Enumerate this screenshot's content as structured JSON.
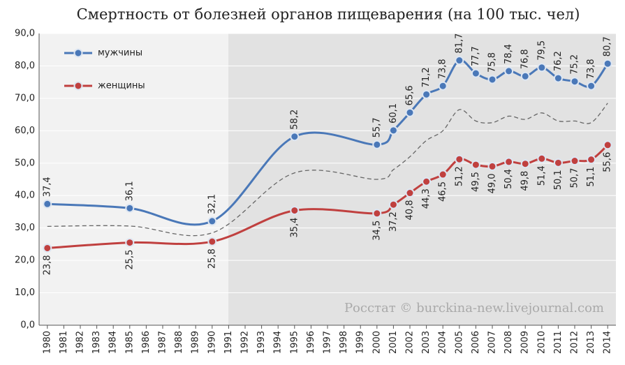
{
  "chart_data": {
    "type": "line",
    "title": "Смертность от болезней органов пищеварения (на 100 тыс. чел)",
    "annotation": "Росстат © burckina-new.livejournal.com",
    "x": [
      1980,
      1985,
      1990,
      1995,
      2000,
      2001,
      2002,
      2003,
      2004,
      2005,
      2006,
      2007,
      2008,
      2009,
      2010,
      2011,
      2012,
      2013,
      2014
    ],
    "series": [
      {
        "name": "мужчины",
        "color": "#4a78b8",
        "values": [
          37.4,
          36.1,
          32.1,
          58.2,
          55.7,
          60.1,
          65.6,
          71.2,
          73.8,
          81.7,
          77.7,
          75.8,
          78.4,
          76.8,
          79.5,
          76.2,
          75.2,
          73.8,
          80.7
        ],
        "value_labels": [
          "37,4",
          "36,1",
          "32,1",
          "58,2",
          "55,7",
          "60,1",
          "65,6",
          "71,2",
          "73,8",
          "81,7",
          "77,7",
          "75,8",
          "78,4",
          "76,8",
          "79,5",
          "76,2",
          "75,2",
          "73,8",
          "80,7"
        ]
      },
      {
        "name": "женщины",
        "color": "#c0403f",
        "values": [
          23.8,
          25.5,
          25.8,
          35.4,
          34.5,
          37.2,
          40.8,
          44.3,
          46.5,
          51.2,
          49.5,
          49.0,
          50.4,
          49.8,
          51.4,
          50.1,
          50.7,
          51.1,
          55.6
        ],
        "value_labels": [
          "23,8",
          "25,5",
          "25,8",
          "35,4",
          "34,5",
          "37,2",
          "40,8",
          "44,3",
          "46,5",
          "51,2",
          "49,5",
          "49,0",
          "50,4",
          "49,8",
          "51,4",
          "50,1",
          "50,7",
          "51,1",
          "55,6"
        ]
      },
      {
        "color": "#666666",
        "dashed": true,
        "values": [
          30.5,
          30.6,
          28.5,
          47,
          45,
          48,
          52,
          57,
          60,
          66.5,
          63,
          62.5,
          64.5,
          63.5,
          65.5,
          63,
          63,
          62.5,
          68.5
        ]
      }
    ],
    "xlim": [
      1979.5,
      2014.5
    ],
    "xticks": [
      1980,
      1981,
      1982,
      1983,
      1984,
      1985,
      1986,
      1987,
      1988,
      1989,
      1990,
      1991,
      1992,
      1993,
      1994,
      1995,
      1996,
      1997,
      1998,
      1999,
      2000,
      2001,
      2002,
      2003,
      2004,
      2005,
      2006,
      2007,
      2008,
      2009,
      2010,
      2011,
      2012,
      2013,
      2014
    ],
    "ylim": [
      0,
      90
    ],
    "yticks": [
      {
        "value": 0,
        "label": "0,0"
      },
      {
        "value": 10,
        "label": "10,0"
      },
      {
        "value": 20,
        "label": "20,0"
      },
      {
        "value": 30,
        "label": "30,0"
      },
      {
        "value": 40,
        "label": "40,0"
      },
      {
        "value": 50,
        "label": "50,0"
      },
      {
        "value": 60,
        "label": "60,0"
      },
      {
        "value": 70,
        "label": "70,0"
      },
      {
        "value": 80,
        "label": "80,0"
      },
      {
        "value": 90,
        "label": "90,0"
      }
    ],
    "grid": true,
    "legend": "upper left"
  }
}
